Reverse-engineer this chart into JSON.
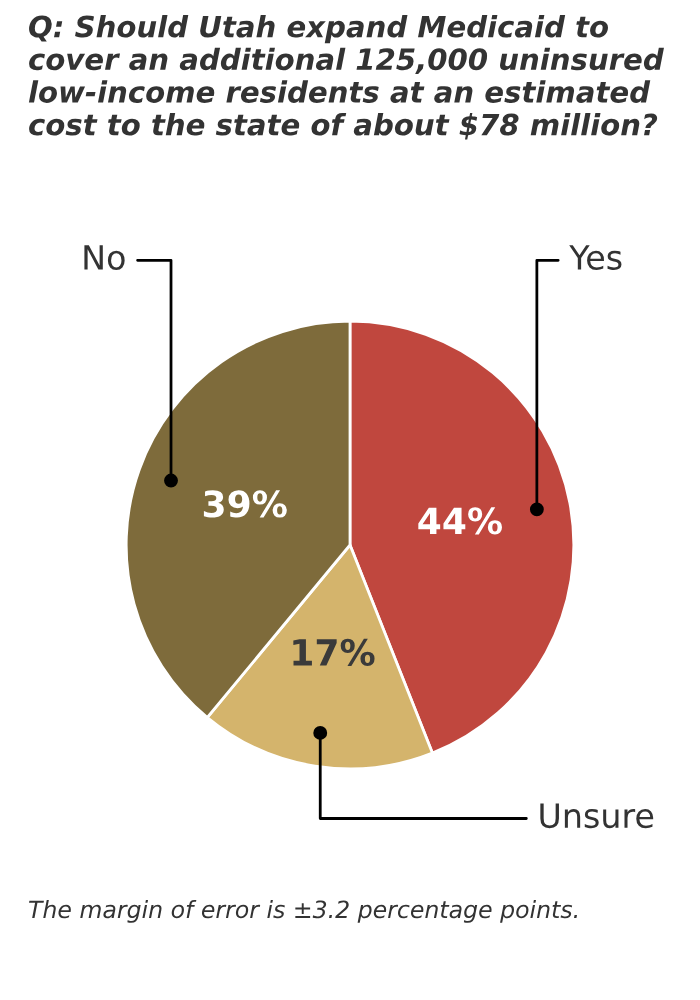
{
  "chart_data": {
    "type": "pie",
    "title": "Q: Should Utah expand Medicaid to cover an additional 125,000 uninsured low-income residents at an estimated cost to the state of about $78 million?",
    "categories": [
      "Yes",
      "Unsure",
      "No"
    ],
    "values": [
      44,
      17,
      39
    ],
    "value_labels": [
      "44%",
      "17%",
      "39%"
    ],
    "colors": [
      "#c0473e",
      "#d4b46c",
      "#7e6b3b"
    ],
    "annotations": [
      "The margin of error is ±3.2 percentage points."
    ]
  }
}
